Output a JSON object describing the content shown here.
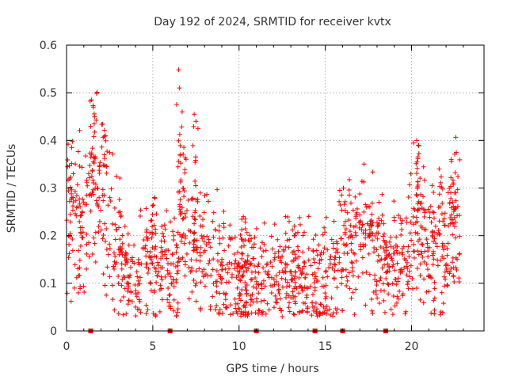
{
  "chart_data": {
    "type": "scatter",
    "title": "Day 192 of 2024, SRMTID for receiver kvtx",
    "xlabel": "GPS time / hours",
    "ylabel": "SRMTID / TECUs",
    "xlim": [
      0,
      24.2
    ],
    "ylim": [
      0,
      0.6
    ],
    "xticks": [
      0,
      5,
      10,
      15,
      20
    ],
    "yticks": [
      0,
      0.1,
      0.2,
      0.3,
      0.4,
      0.5,
      0.6
    ],
    "ytick_labels": [
      "0",
      "0.1",
      "0.2",
      "0.3",
      "0.4",
      "0.5",
      "0.6"
    ],
    "grid": true,
    "marker": "plus",
    "color": "#ff0000",
    "series": [
      {
        "name": "SRMTID",
        "envelope": {
          "x": [
            0,
            0.5,
            1,
            1.5,
            1.8,
            2,
            2.5,
            3,
            3.5,
            4,
            4.5,
            5,
            5.5,
            6,
            6.5,
            6.8,
            7,
            7.5,
            8,
            8.5,
            9,
            9.5,
            10,
            10.5,
            11,
            11.5,
            12,
            12.5,
            13,
            13.5,
            14,
            14.5,
            15,
            15.5,
            16,
            16.5,
            17,
            17.5,
            18,
            18.5,
            19,
            19.5,
            20,
            20.3,
            20.5,
            21,
            21.5,
            22,
            22.5,
            22.8
          ],
          "y": [
            0.26,
            0.22,
            0.19,
            0.3,
            0.33,
            0.3,
            0.22,
            0.18,
            0.11,
            0.1,
            0.14,
            0.17,
            0.15,
            0.12,
            0.14,
            0.28,
            0.22,
            0.18,
            0.16,
            0.14,
            0.13,
            0.12,
            0.1,
            0.12,
            0.11,
            0.11,
            0.11,
            0.1,
            0.11,
            0.12,
            0.11,
            0.12,
            0.11,
            0.13,
            0.15,
            0.18,
            0.19,
            0.2,
            0.18,
            0.14,
            0.13,
            0.16,
            0.21,
            0.25,
            0.2,
            0.17,
            0.16,
            0.18,
            0.22,
            0.22
          ]
        },
        "peaks": [
          {
            "x": 0.3,
            "y": 0.385
          },
          {
            "x": 1.45,
            "y": 0.485
          },
          {
            "x": 1.55,
            "y": 0.47
          },
          {
            "x": 2.25,
            "y": 0.41
          },
          {
            "x": 3.1,
            "y": 0.25
          },
          {
            "x": 5.1,
            "y": 0.28
          },
          {
            "x": 6.5,
            "y": 0.548
          },
          {
            "x": 6.55,
            "y": 0.51
          },
          {
            "x": 6.7,
            "y": 0.46
          },
          {
            "x": 7.4,
            "y": 0.455
          },
          {
            "x": 7.5,
            "y": 0.44
          },
          {
            "x": 10.25,
            "y": 0.24
          },
          {
            "x": 12.7,
            "y": 0.24
          },
          {
            "x": 13.2,
            "y": 0.22
          },
          {
            "x": 16.05,
            "y": 0.3
          },
          {
            "x": 17.7,
            "y": 0.245
          },
          {
            "x": 20.3,
            "y": 0.4
          },
          {
            "x": 20.4,
            "y": 0.39
          },
          {
            "x": 21.6,
            "y": 0.34
          },
          {
            "x": 22.3,
            "y": 0.36
          },
          {
            "x": 22.5,
            "y": 0.29
          }
        ],
        "low_points": [
          {
            "x": 9.85,
            "y": 0.04
          },
          {
            "x": 12.5,
            "y": 0.03
          },
          {
            "x": 4.0,
            "y": 0.05
          },
          {
            "x": 14.9,
            "y": 0.05
          },
          {
            "x": 20.5,
            "y": 0.065
          },
          {
            "x": 2.3,
            "y": 0.075
          }
        ],
        "zero_markers_x": [
          1.4,
          6.0,
          11.0,
          14.4,
          16.0,
          18.5
        ]
      }
    ]
  }
}
